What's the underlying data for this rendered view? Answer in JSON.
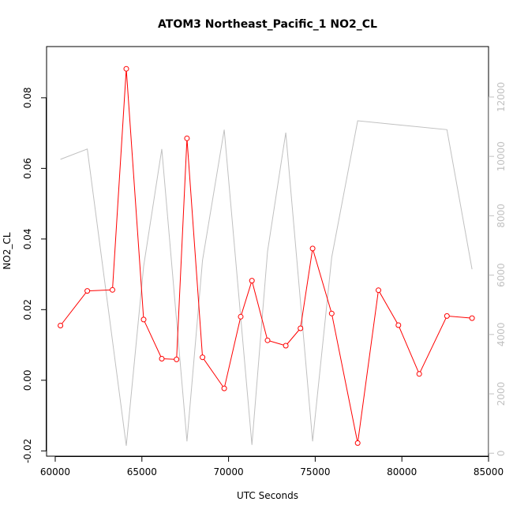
{
  "chart_data": {
    "type": "line",
    "title": "ATOM3 Northeast_Pacific_1 NO2_CL",
    "xlabel": "UTC Seconds",
    "ylabel": "NO2_CL",
    "xlim": [
      59500,
      85000
    ],
    "ylim": [
      -0.0215,
      0.0945
    ],
    "y2lim": [
      -100,
      13700
    ],
    "x_ticks": [
      60000,
      65000,
      70000,
      75000,
      80000,
      85000
    ],
    "y_ticks": [
      -0.02,
      0.0,
      0.02,
      0.04,
      0.06,
      0.08
    ],
    "y2_ticks": [
      0,
      2000,
      4000,
      6000,
      8000,
      10000,
      12000
    ],
    "x_tick_labels": [
      "60000",
      "65000",
      "70000",
      "75000",
      "80000",
      "85000"
    ],
    "y_tick_labels": [
      "-0.02",
      "0.00",
      "0.02",
      "0.04",
      "0.06",
      "0.08"
    ],
    "y2_tick_labels": [
      "0",
      "2000",
      "4000",
      "6000",
      "8000",
      "10000",
      "12000"
    ],
    "grid": false,
    "series": [
      {
        "axis": "left",
        "color": "#ff0000",
        "marker": "open-circle",
        "x": [
          60300,
          61850,
          63300,
          64100,
          65100,
          66150,
          67000,
          67600,
          68500,
          69750,
          70700,
          71350,
          72250,
          73300,
          74150,
          74850,
          75950,
          77450,
          78650,
          79800,
          81000,
          82600,
          84050
        ],
        "y": [
          0.0155,
          0.0253,
          0.0256,
          0.0882,
          0.0172,
          0.0061,
          0.0059,
          0.0685,
          0.0065,
          -0.0023,
          0.018,
          0.0282,
          0.0113,
          0.0098,
          0.0147,
          0.0373,
          0.0189,
          -0.0178,
          0.0255,
          0.0156,
          0.0018,
          0.0182,
          0.0176
        ]
      },
      {
        "axis": "right",
        "color": "#c0c0c0",
        "marker": "none",
        "x": [
          60300,
          61850,
          64100,
          65100,
          66150,
          67600,
          68500,
          69750,
          71350,
          72250,
          73300,
          74850,
          75950,
          77450,
          82600,
          84050
        ],
        "y": [
          9900,
          10250,
          250,
          6300,
          10250,
          400,
          6500,
          10900,
          280,
          6800,
          10800,
          400,
          6600,
          11200,
          10900,
          6200
        ]
      }
    ]
  }
}
